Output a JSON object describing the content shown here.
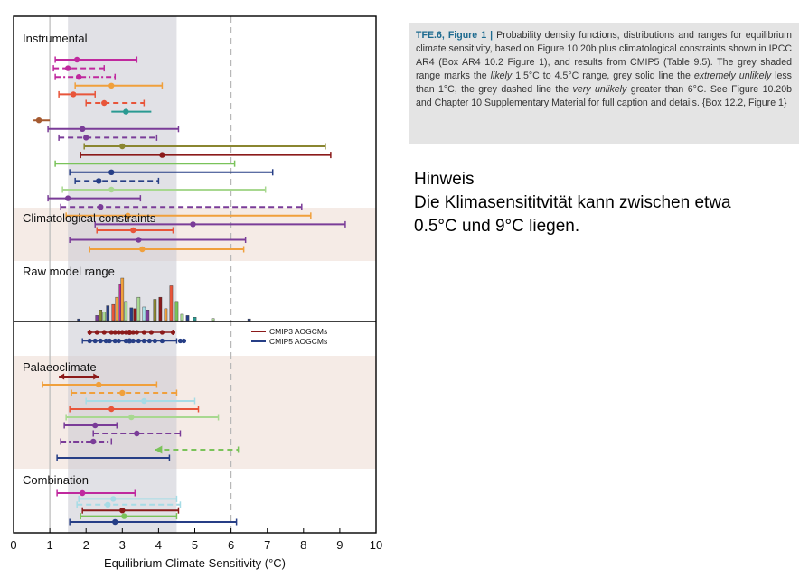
{
  "caption": {
    "label": "TFE.6, Figure 1 |",
    "text_1": " Probability density functions, distributions and ranges for equilibrium climate sensitivity, based on Figure 10.20b plus climatological constraints shown in IPCC AR4 (Box AR4 10.2 Figure 1), and results from CMIP5 (Table 9.5). The grey shaded range marks the ",
    "em_1": "likely",
    "text_2": " 1.5°C to 4.5°C range, grey solid line the ",
    "em_2": "extremely unlikely",
    "text_3": " less than 1°C, the grey dashed line the ",
    "em_3": "very unlikely",
    "text_4": " greater than 6°C. See Figure 10.20b and Chapter 10 Supplementary Material for full caption and details. {Box 12.2, Figure 1}"
  },
  "note": {
    "title": "Hinweis",
    "line_1": "Die Klimasensititvität kann zwischen etwa",
    "line_2": "0.5°C und 9°C liegen."
  },
  "chart_data": {
    "type": "range",
    "xlabel": "Equilibrium Climate Sensitivity (°C)",
    "xlim": [
      0,
      10
    ],
    "xticks": [
      "0",
      "1",
      "2",
      "3",
      "4",
      "5",
      "6",
      "7",
      "8",
      "9",
      "10"
    ],
    "likely_range": [
      1.5,
      4.5
    ],
    "extremely_unlikely_below": 1,
    "very_unlikely_above": 6,
    "colors": {
      "magenta": "#c0299e",
      "orange": "#f0a03c",
      "red": "#e8553a",
      "teal": "#2a9a92",
      "brown": "#a55a30",
      "purple": "#7a3c98",
      "olive": "#8a8630",
      "darkred": "#8b1a1a",
      "green": "#7ac35a",
      "navy": "#263e86",
      "lightgreen": "#a8d890",
      "lightblue": "#a6dce6"
    },
    "sections": [
      {
        "label": "Instrumental",
        "ranges": [
          {
            "lo": 1.15,
            "hi": 3.4,
            "mid": 1.75,
            "color": "magenta",
            "style": "solid",
            "caps": true
          },
          {
            "lo": 1.1,
            "hi": 2.5,
            "mid": 1.5,
            "color": "magenta",
            "style": "dash",
            "caps": true
          },
          {
            "lo": 1.15,
            "hi": 2.8,
            "mid": 1.8,
            "color": "magenta",
            "style": "dashdot",
            "caps": true
          },
          {
            "lo": 1.7,
            "hi": 4.1,
            "mid": 2.7,
            "color": "orange",
            "style": "solid",
            "caps": true
          },
          {
            "lo": 1.25,
            "hi": 2.25,
            "mid": 1.65,
            "color": "red",
            "style": "solid",
            "caps": true
          },
          {
            "lo": 2.0,
            "hi": 3.6,
            "mid": 2.5,
            "color": "red",
            "style": "dash",
            "caps": true
          },
          {
            "lo": 2.7,
            "hi": 3.8,
            "mid": 3.1,
            "color": "teal",
            "style": "solid",
            "caps": false
          },
          {
            "lo": 0.55,
            "hi": 1.0,
            "mid": 0.7,
            "color": "brown",
            "style": "solid",
            "caps": false
          },
          {
            "lo": 0.95,
            "hi": 4.55,
            "mid": 1.9,
            "color": "purple",
            "style": "solid",
            "caps": true
          },
          {
            "lo": 1.25,
            "hi": 3.95,
            "mid": 2.0,
            "color": "purple",
            "style": "dash",
            "caps": true
          },
          {
            "lo": 1.95,
            "hi": 8.6,
            "mid": 3.0,
            "color": "olive",
            "style": "solid",
            "caps": true
          },
          {
            "lo": 1.85,
            "hi": 8.75,
            "mid": 4.1,
            "color": "darkred",
            "style": "solid",
            "caps": true
          },
          {
            "lo": 1.15,
            "hi": 6.1,
            "mid": null,
            "color": "green",
            "style": "solid",
            "caps": true
          },
          {
            "lo": 1.55,
            "hi": 7.15,
            "mid": 2.7,
            "color": "navy",
            "style": "solid",
            "caps": true
          },
          {
            "lo": 1.7,
            "hi": 4.0,
            "mid": 2.35,
            "color": "navy",
            "style": "dash",
            "caps": true
          },
          {
            "lo": 1.35,
            "hi": 6.95,
            "mid": 2.7,
            "color": "lightgreen",
            "style": "solid",
            "caps": true
          },
          {
            "lo": 0.95,
            "hi": 3.5,
            "mid": 1.5,
            "color": "purple",
            "style": "solid",
            "caps": true
          },
          {
            "lo": 1.3,
            "hi": 7.95,
            "mid": 2.4,
            "color": "purple",
            "style": "dash",
            "caps": true
          },
          {
            "lo": 1.45,
            "hi": 8.2,
            "mid": 3.15,
            "color": "orange",
            "style": "solid",
            "caps": true
          },
          {
            "lo": 2.25,
            "hi": 9.15,
            "mid": 4.95,
            "color": "purple",
            "style": "solid",
            "caps": true
          }
        ]
      },
      {
        "label": "Climatological constraints",
        "ranges": [
          {
            "lo": 2.3,
            "hi": 4.4,
            "mid": 3.3,
            "color": "red",
            "style": "solid",
            "caps": true
          },
          {
            "lo": 1.55,
            "hi": 6.4,
            "mid": 3.45,
            "color": "purple",
            "style": "solid",
            "caps": true
          },
          {
            "lo": 2.1,
            "hi": 6.35,
            "mid": 3.55,
            "color": "orange",
            "style": "solid",
            "caps": true
          }
        ]
      },
      {
        "label": "Raw model range",
        "histogram": [
          {
            "x": 1.8,
            "v": 0.04,
            "color": "navy"
          },
          {
            "x": 2.3,
            "v": 0.12,
            "color": "purple"
          },
          {
            "x": 2.4,
            "v": 0.25,
            "color": "olive"
          },
          {
            "x": 2.5,
            "v": 0.2,
            "color": "lightgreen"
          },
          {
            "x": 2.6,
            "v": 0.35,
            "color": "navy"
          },
          {
            "x": 2.75,
            "v": 0.38,
            "color": "red"
          },
          {
            "x": 2.85,
            "v": 0.55,
            "color": "orange"
          },
          {
            "x": 2.95,
            "v": 0.85,
            "color": "magenta"
          },
          {
            "x": 3.0,
            "v": 1.0,
            "color": "orange"
          },
          {
            "x": 3.1,
            "v": 0.45,
            "color": "lightgreen"
          },
          {
            "x": 3.25,
            "v": 0.3,
            "color": "navy"
          },
          {
            "x": 3.35,
            "v": 0.28,
            "color": "darkred"
          },
          {
            "x": 3.45,
            "v": 0.55,
            "color": "lightgreen"
          },
          {
            "x": 3.6,
            "v": 0.32,
            "color": "lightblue"
          },
          {
            "x": 3.7,
            "v": 0.25,
            "color": "purple"
          },
          {
            "x": 3.9,
            "v": 0.5,
            "color": "olive"
          },
          {
            "x": 4.05,
            "v": 0.55,
            "color": "darkred"
          },
          {
            "x": 4.2,
            "v": 0.28,
            "color": "orange"
          },
          {
            "x": 4.35,
            "v": 0.82,
            "color": "red"
          },
          {
            "x": 4.5,
            "v": 0.45,
            "color": "green"
          },
          {
            "x": 4.65,
            "v": 0.15,
            "color": "lightgreen"
          },
          {
            "x": 4.8,
            "v": 0.12,
            "color": "navy"
          },
          {
            "x": 5.0,
            "v": 0.08,
            "color": "teal"
          },
          {
            "x": 5.5,
            "v": 0.05,
            "color": "lightgreen"
          },
          {
            "x": 6.5,
            "v": 0.04,
            "color": "navy"
          }
        ]
      },
      {
        "label": "",
        "legend": [
          {
            "name": "CMIP3 AOGCMs",
            "color": "darkred"
          },
          {
            "name": "CMIP5 AOGCMs",
            "color": "navy"
          }
        ],
        "dot_rows": [
          {
            "color": "darkred",
            "lo": 2.1,
            "hi": 4.4,
            "mid": 3.2,
            "points": [
              2.1,
              2.3,
              2.5,
              2.7,
              2.8,
              2.9,
              3.0,
              3.1,
              3.2,
              3.3,
              3.4,
              3.6,
              3.8,
              4.1,
              4.4
            ]
          },
          {
            "color": "navy",
            "lo": 1.9,
            "hi": 4.5,
            "mid": 3.2,
            "points": [
              2.1,
              2.25,
              2.4,
              2.55,
              2.65,
              2.8,
              2.9,
              3.1,
              3.3,
              3.45,
              3.6,
              3.75,
              3.9,
              4.1,
              4.6,
              4.7
            ]
          }
        ]
      },
      {
        "label": "Palaeoclimate",
        "ranges": [
          {
            "lo": 1.25,
            "hi": 2.35,
            "mid": null,
            "color": "darkred",
            "style": "solid",
            "caps": false,
            "arrows": true
          },
          {
            "lo": 0.8,
            "hi": 3.95,
            "mid": 2.35,
            "color": "orange",
            "style": "solid",
            "caps": true
          },
          {
            "lo": 1.6,
            "hi": 4.5,
            "mid": 3.0,
            "color": "orange",
            "style": "dash",
            "caps": true
          },
          {
            "lo": 2.0,
            "hi": 5.0,
            "mid": 3.6,
            "color": "lightblue",
            "style": "solid",
            "caps": true
          },
          {
            "lo": 1.55,
            "hi": 5.1,
            "mid": 2.7,
            "color": "red",
            "style": "solid",
            "caps": true
          },
          {
            "lo": 1.45,
            "hi": 5.65,
            "mid": 3.25,
            "color": "lightgreen",
            "style": "solid",
            "caps": true
          },
          {
            "lo": 1.4,
            "hi": 2.85,
            "mid": 2.25,
            "color": "purple",
            "style": "solid",
            "caps": true
          },
          {
            "lo": 2.2,
            "hi": 4.6,
            "mid": 3.4,
            "color": "purple",
            "style": "dash",
            "caps": true
          },
          {
            "lo": 1.3,
            "hi": 2.7,
            "mid": 2.2,
            "color": "purple",
            "style": "dashdot",
            "caps": true
          },
          {
            "lo": 3.9,
            "hi": 6.2,
            "mid": null,
            "color": "green",
            "style": "dash",
            "caps": true,
            "leftArrow": true
          },
          {
            "lo": 1.2,
            "hi": 4.3,
            "mid": null,
            "color": "navy",
            "style": "solid",
            "caps": true
          }
        ]
      },
      {
        "label": "Combination",
        "ranges": [
          {
            "lo": 1.2,
            "hi": 3.35,
            "mid": 1.9,
            "color": "magenta",
            "style": "solid",
            "caps": true
          },
          {
            "lo": 1.8,
            "hi": 4.5,
            "mid": 2.75,
            "color": "lightblue",
            "style": "solid",
            "caps": true
          },
          {
            "lo": 1.75,
            "hi": 4.6,
            "mid": 2.6,
            "color": "lightblue",
            "style": "dash",
            "caps": true
          },
          {
            "lo": 1.9,
            "hi": 4.55,
            "mid": 3.0,
            "color": "darkred",
            "style": "solid",
            "caps": true
          },
          {
            "lo": 1.85,
            "hi": 4.5,
            "mid": 3.05,
            "color": "green",
            "style": "solid",
            "caps": true
          },
          {
            "lo": 1.55,
            "hi": 6.15,
            "mid": 2.8,
            "color": "navy",
            "style": "solid",
            "caps": true
          }
        ]
      }
    ]
  }
}
